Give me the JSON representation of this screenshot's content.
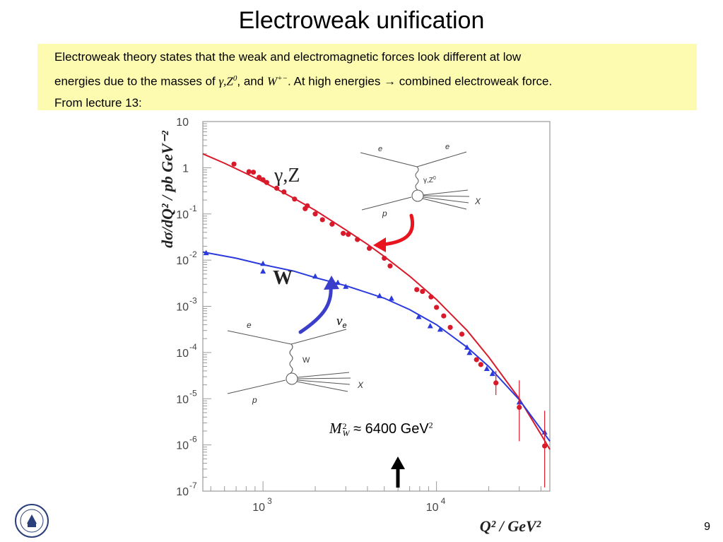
{
  "slide": {
    "title": "Electroweak unification",
    "page_number": "9",
    "text": {
      "line1": "Electroweak theory states that the weak and electromagnetic forces look different at low",
      "line2_a": "energies due to the masses of ",
      "line2_math1": "γ,Z",
      "line2_math1_sup": "0",
      "line2_b": ", and ",
      "line2_math2": "W",
      "line2_math2_sup": "+−",
      "line2_c": ". At high energies ",
      "line2_arrow": "→",
      "line2_d": " combined electroweak force.",
      "line3": "From lecture 13:"
    },
    "annotation": {
      "mw_symbol": "M",
      "mw_sup": "2",
      "mw_sub": "W",
      "mw_relation": "≈",
      "mw_value": " 6400 GeV",
      "mw_unit_sup": "2"
    },
    "colors": {
      "box": "#fdfbb0",
      "nc": "#d81a2a",
      "cc": "#2a3adc",
      "red_arrow": "#e8141e",
      "blue_arrow": "#3a3ec8"
    }
  },
  "chart_data": {
    "type": "scatter",
    "xlabel": "Q² / GeV²",
    "ylabel": "dσ/dQ² / pb GeV⁻²",
    "x_scale": "log",
    "y_scale": "log",
    "xlim": [
      450,
      45000
    ],
    "ylim": [
      1e-07,
      10
    ],
    "x_ticks": [
      {
        "value": 1000,
        "label": "10",
        "exp": "3"
      },
      {
        "value": 10000,
        "label": "10",
        "exp": "4"
      }
    ],
    "y_ticks": [
      {
        "value": 10,
        "label": "10",
        "exp": ""
      },
      {
        "value": 1,
        "label": "1",
        "exp": ""
      },
      {
        "value": 0.1,
        "label": "10",
        "exp": "-1"
      },
      {
        "value": 0.01,
        "label": "10",
        "exp": "-2"
      },
      {
        "value": 0.001,
        "label": "10",
        "exp": "-3"
      },
      {
        "value": 0.0001,
        "label": "10",
        "exp": "-4"
      },
      {
        "value": 1e-05,
        "label": "10",
        "exp": "-5"
      },
      {
        "value": 1e-06,
        "label": "10",
        "exp": "-6"
      },
      {
        "value": 1e-07,
        "label": "10",
        "exp": "-7"
      }
    ],
    "series": [
      {
        "name": "γ,Z",
        "color": "#d81a2a",
        "marker": "circle",
        "curve": [
          [
            450,
            2.0
          ],
          [
            600,
            1.25
          ],
          [
            800,
            0.75
          ],
          [
            1000,
            0.5
          ],
          [
            1500,
            0.22
          ],
          [
            2000,
            0.12
          ],
          [
            3000,
            0.045
          ],
          [
            4000,
            0.022
          ],
          [
            5000,
            0.012
          ],
          [
            7000,
            0.0045
          ],
          [
            10000,
            0.0014
          ],
          [
            15000,
            0.0003
          ],
          [
            20000,
            8e-05
          ],
          [
            30000,
            1e-05
          ],
          [
            40000,
            1.7e-06
          ],
          [
            45000,
            8e-07
          ]
        ],
        "points": [
          {
            "x": 680,
            "y": 1.2
          },
          {
            "x": 830,
            "y": 0.82
          },
          {
            "x": 880,
            "y": 0.8
          },
          {
            "x": 950,
            "y": 0.62
          },
          {
            "x": 1000,
            "y": 0.55
          },
          {
            "x": 1050,
            "y": 0.48
          },
          {
            "x": 1200,
            "y": 0.36
          },
          {
            "x": 1320,
            "y": 0.3
          },
          {
            "x": 1520,
            "y": 0.21
          },
          {
            "x": 1750,
            "y": 0.13
          },
          {
            "x": 1800,
            "y": 0.15
          },
          {
            "x": 2000,
            "y": 0.1
          },
          {
            "x": 2200,
            "y": 0.075
          },
          {
            "x": 2500,
            "y": 0.06
          },
          {
            "x": 2900,
            "y": 0.038
          },
          {
            "x": 3100,
            "y": 0.036
          },
          {
            "x": 3500,
            "y": 0.028
          },
          {
            "x": 4100,
            "y": 0.018
          },
          {
            "x": 5000,
            "y": 0.011
          },
          {
            "x": 5400,
            "y": 0.0075
          },
          {
            "x": 7700,
            "y": 0.0023
          },
          {
            "x": 8300,
            "y": 0.0021
          },
          {
            "x": 9300,
            "y": 0.0016
          },
          {
            "x": 10000,
            "y": 0.00095
          },
          {
            "x": 11000,
            "y": 0.00062
          },
          {
            "x": 12000,
            "y": 0.00035
          },
          {
            "x": 14000,
            "y": 0.00025
          },
          {
            "x": 17000,
            "y": 7e-05
          },
          {
            "x": 18000,
            "y": 5.5e-05
          },
          {
            "x": 22000,
            "y": 2.2e-05
          },
          {
            "x": 30000,
            "y": 6.5e-06
          },
          {
            "x": 42000,
            "y": 9.5e-07
          }
        ]
      },
      {
        "name": "W",
        "color": "#2a3adc",
        "marker": "triangle",
        "curve": [
          [
            450,
            0.015
          ],
          [
            700,
            0.011
          ],
          [
            1000,
            0.008
          ],
          [
            1500,
            0.0058
          ],
          [
            2000,
            0.0042
          ],
          [
            3000,
            0.0028
          ],
          [
            5000,
            0.0015
          ],
          [
            7000,
            0.00085
          ],
          [
            10000,
            0.0004
          ],
          [
            15000,
            0.00013
          ],
          [
            20000,
            5e-05
          ],
          [
            30000,
            9.5e-06
          ],
          [
            40000,
            2.2e-06
          ],
          [
            45000,
            1.2e-06
          ]
        ],
        "points": [
          {
            "x": 470,
            "y": 0.0145
          },
          {
            "x": 1000,
            "y": 0.0085
          },
          {
            "x": 1000,
            "y": 0.0058
          },
          {
            "x": 2000,
            "y": 0.0045
          },
          {
            "x": 2700,
            "y": 0.0033
          },
          {
            "x": 3000,
            "y": 0.0027
          },
          {
            "x": 4700,
            "y": 0.0017
          },
          {
            "x": 5500,
            "y": 0.0015
          },
          {
            "x": 7900,
            "y": 0.0006
          },
          {
            "x": 9200,
            "y": 0.00038
          },
          {
            "x": 10500,
            "y": 0.00032
          },
          {
            "x": 15000,
            "y": 0.00013
          },
          {
            "x": 15500,
            "y": 0.0001
          },
          {
            "x": 19500,
            "y": 4.5e-05
          },
          {
            "x": 21000,
            "y": 3.5e-05
          },
          {
            "x": 30000,
            "y": 8.5e-06
          },
          {
            "x": 42000,
            "y": 1.9e-06
          }
        ]
      }
    ],
    "diagrams": {
      "nc": {
        "e_in": "e",
        "e_out": "e",
        "boson": "γ,Z",
        "boson_sup": "0",
        "proton": "p",
        "x": "X"
      },
      "cc": {
        "e_in": "e",
        "nu": "ν",
        "nu_sub": "e",
        "boson": "W",
        "proton": "p",
        "x": "X"
      }
    }
  }
}
